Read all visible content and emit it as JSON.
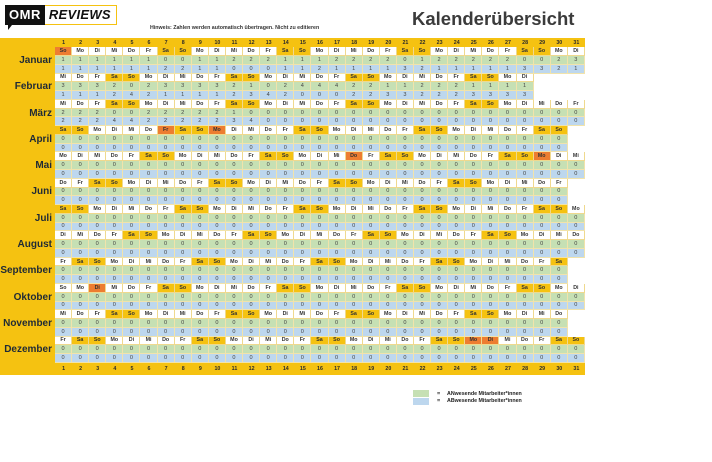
{
  "header": {
    "logo": {
      "omr": "OMR",
      "reviews": "REVIEWS"
    },
    "note": "Hinweis: Zahlen werden automatisch übertragen. Nicht zu editieren",
    "title": "Kalenderübersicht"
  },
  "colors": {
    "panel_yellow": "#f5c211",
    "weekend": "#f5c211",
    "holiday": "#ed7d31",
    "present": "#c6e0b4",
    "absent": "#bdd7ee",
    "weekday": "#ffffff"
  },
  "day_numbers": [
    1,
    2,
    3,
    4,
    5,
    6,
    7,
    8,
    9,
    10,
    11,
    12,
    13,
    14,
    15,
    16,
    17,
    18,
    19,
    20,
    21,
    22,
    23,
    24,
    25,
    26,
    27,
    28,
    29,
    30,
    31
  ],
  "months": [
    {
      "name": "Januar",
      "days": [
        "So",
        "Mo",
        "Di",
        "Mi",
        "Do",
        "Fr",
        "Sa",
        "So",
        "Mo",
        "Di",
        "Mi",
        "Do",
        "Fr",
        "Sa",
        "So",
        "Mo",
        "Di",
        "Mi",
        "Do",
        "Fr",
        "Sa",
        "So",
        "Mo",
        "Di",
        "Mi",
        "Do",
        "Fr",
        "Sa",
        "So",
        "Mo",
        "Di"
      ],
      "holidays": [
        1
      ],
      "unmarked": [],
      "present": [
        1,
        1,
        1,
        1,
        1,
        1,
        0,
        0,
        1,
        1,
        2,
        2,
        2,
        1,
        1,
        1,
        2,
        2,
        2,
        2,
        0,
        1,
        2,
        2,
        2,
        2,
        2,
        0,
        0,
        2,
        3
      ],
      "absent": [
        1,
        1,
        1,
        1,
        1,
        1,
        2,
        2,
        1,
        1,
        0,
        0,
        0,
        1,
        1,
        2,
        1,
        1,
        1,
        1,
        3,
        2,
        1,
        1,
        1,
        1,
        1,
        3,
        3,
        2,
        1
      ]
    },
    {
      "name": "Februar",
      "days": [
        "Mi",
        "Do",
        "Fr",
        "Sa",
        "So",
        "Mo",
        "Di",
        "Mi",
        "Do",
        "Fr",
        "Sa",
        "So",
        "Mo",
        "Di",
        "Mi",
        "Do",
        "Fr",
        "Sa",
        "So",
        "Mo",
        "Di",
        "Mi",
        "Do",
        "Fr",
        "Sa",
        "So",
        "Mo",
        "Di"
      ],
      "holidays": [],
      "unmarked": [],
      "present": [
        3,
        3,
        3,
        2,
        0,
        2,
        3,
        3,
        3,
        3,
        2,
        1,
        0,
        2,
        4,
        4,
        4,
        2,
        2,
        1,
        1,
        2,
        2,
        2,
        1,
        1,
        1,
        1
      ],
      "absent": [
        1,
        1,
        1,
        2,
        4,
        2,
        1,
        1,
        1,
        1,
        2,
        3,
        4,
        2,
        0,
        0,
        0,
        2,
        2,
        3,
        3,
        2,
        2,
        2,
        3,
        3,
        3,
        3
      ]
    },
    {
      "name": "März",
      "days": [
        "Mi",
        "Do",
        "Fr",
        "Sa",
        "So",
        "Mo",
        "Di",
        "Mi",
        "Do",
        "Fr",
        "Sa",
        "So",
        "Mo",
        "Di",
        "Mi",
        "Do",
        "Fr",
        "Sa",
        "So",
        "Mo",
        "Di",
        "Mi",
        "Do",
        "Fr",
        "Sa",
        "So",
        "Mo",
        "Di",
        "Mi",
        "Do",
        "Fr"
      ],
      "holidays": [],
      "unmarked": [],
      "present": [
        2,
        2,
        2,
        0,
        0,
        2,
        2,
        2,
        2,
        2,
        1,
        0,
        0,
        0,
        0,
        0,
        0,
        0,
        0,
        0,
        0,
        0,
        0,
        0,
        0,
        0,
        0,
        0,
        0,
        0,
        0
      ],
      "absent": [
        2,
        2,
        2,
        4,
        4,
        2,
        2,
        2,
        2,
        2,
        3,
        4,
        0,
        0,
        0,
        0,
        0,
        0,
        0,
        0,
        0,
        0,
        0,
        0,
        0,
        0,
        0,
        0,
        0,
        0,
        0
      ]
    },
    {
      "name": "April",
      "days": [
        "Sa",
        "So",
        "Mo",
        "Di",
        "Mi",
        "Do",
        "Fr",
        "Sa",
        "So",
        "Mo",
        "Di",
        "Mi",
        "Do",
        "Fr",
        "Sa",
        "So",
        "Mo",
        "Di",
        "Mi",
        "Do",
        "Fr",
        "Sa",
        "So",
        "Mo",
        "Di",
        "Mi",
        "Do",
        "Fr",
        "Sa",
        "So"
      ],
      "holidays": [
        7,
        10
      ],
      "unmarked": [],
      "present": [
        0,
        0,
        0,
        0,
        0,
        0,
        0,
        0,
        0,
        0,
        0,
        0,
        0,
        0,
        0,
        0,
        0,
        0,
        0,
        0,
        0,
        0,
        0,
        0,
        0,
        0,
        0,
        0,
        0,
        0
      ],
      "absent": [
        0,
        0,
        0,
        0,
        0,
        0,
        0,
        0,
        0,
        0,
        0,
        0,
        0,
        0,
        0,
        0,
        0,
        0,
        0,
        0,
        0,
        0,
        0,
        0,
        0,
        0,
        0,
        0,
        0,
        0
      ]
    },
    {
      "name": "Mai",
      "days": [
        "Mo",
        "Di",
        "Mi",
        "Do",
        "Fr",
        "Sa",
        "So",
        "Mo",
        "Di",
        "Mi",
        "Do",
        "Fr",
        "Sa",
        "So",
        "Mo",
        "Di",
        "Mi",
        "Do",
        "Fr",
        "Sa",
        "So",
        "Mo",
        "Di",
        "Mi",
        "Do",
        "Fr",
        "Sa",
        "So",
        "Mo",
        "Di",
        "Mi"
      ],
      "holidays": [
        18,
        29
      ],
      "unmarked": [],
      "present": [
        0,
        0,
        0,
        0,
        0,
        0,
        0,
        0,
        0,
        0,
        0,
        0,
        0,
        0,
        0,
        0,
        0,
        0,
        0,
        0,
        0,
        0,
        0,
        0,
        0,
        0,
        0,
        0,
        0,
        0,
        0
      ],
      "absent": [
        0,
        0,
        0,
        0,
        0,
        0,
        0,
        0,
        0,
        0,
        0,
        0,
        0,
        0,
        0,
        0,
        0,
        0,
        0,
        0,
        0,
        0,
        0,
        0,
        0,
        0,
        0,
        0,
        0,
        0,
        0
      ]
    },
    {
      "name": "Juni",
      "days": [
        "Do",
        "Fr",
        "Sa",
        "So",
        "Mo",
        "Di",
        "Mi",
        "Do",
        "Fr",
        "Sa",
        "So",
        "Mo",
        "Di",
        "Mi",
        "Do",
        "Fr",
        "Sa",
        "So",
        "Mo",
        "Di",
        "Mi",
        "Do",
        "Fr",
        "Sa",
        "So",
        "Mo",
        "Di",
        "Mi",
        "Do",
        "Fr"
      ],
      "holidays": [],
      "unmarked": [],
      "present": [
        0,
        0,
        0,
        0,
        0,
        0,
        0,
        0,
        0,
        0,
        0,
        0,
        0,
        0,
        0,
        0,
        0,
        0,
        0,
        0,
        0,
        0,
        0,
        0,
        0,
        0,
        0,
        0,
        0,
        0
      ],
      "absent": [
        0,
        0,
        0,
        0,
        0,
        0,
        0,
        0,
        0,
        0,
        0,
        0,
        0,
        0,
        0,
        0,
        0,
        0,
        0,
        0,
        0,
        0,
        0,
        0,
        0,
        0,
        0,
        0,
        0,
        0
      ]
    },
    {
      "name": "Juli",
      "days": [
        "Sa",
        "So",
        "Mo",
        "Di",
        "Mi",
        "Do",
        "Fr",
        "Sa",
        "So",
        "Mo",
        "Di",
        "Mi",
        "Do",
        "Fr",
        "Sa",
        "So",
        "Mo",
        "Di",
        "Mi",
        "Do",
        "Fr",
        "Sa",
        "So",
        "Mo",
        "Di",
        "Mi",
        "Do",
        "Fr",
        "Sa",
        "So",
        "Mo"
      ],
      "holidays": [],
      "unmarked": [],
      "present": [
        0,
        0,
        0,
        0,
        0,
        0,
        0,
        0,
        0,
        0,
        0,
        0,
        0,
        0,
        0,
        0,
        0,
        0,
        0,
        0,
        0,
        0,
        0,
        0,
        0,
        0,
        0,
        0,
        0,
        0,
        0
      ],
      "absent": [
        0,
        0,
        0,
        0,
        0,
        0,
        0,
        0,
        0,
        0,
        0,
        0,
        0,
        0,
        0,
        0,
        0,
        0,
        0,
        0,
        0,
        0,
        0,
        0,
        0,
        0,
        0,
        0,
        0,
        0,
        0
      ]
    },
    {
      "name": "August",
      "days": [
        "Di",
        "Mi",
        "Do",
        "Fr",
        "Sa",
        "So",
        "Mo",
        "Di",
        "Mi",
        "Do",
        "Fr",
        "Sa",
        "So",
        "Mo",
        "Di",
        "Mi",
        "Do",
        "Fr",
        "Sa",
        "So",
        "Mo",
        "Di",
        "Mi",
        "Do",
        "Fr",
        "Sa",
        "So",
        "Mo",
        "Di",
        "Mi",
        "Do"
      ],
      "holidays": [],
      "unmarked": [],
      "present": [
        0,
        0,
        0,
        0,
        0,
        0,
        0,
        0,
        0,
        0,
        0,
        0,
        0,
        0,
        0,
        0,
        0,
        0,
        0,
        0,
        0,
        0,
        0,
        0,
        0,
        0,
        0,
        0,
        0,
        0,
        0
      ],
      "absent": [
        0,
        0,
        0,
        0,
        0,
        0,
        0,
        0,
        0,
        0,
        0,
        0,
        0,
        0,
        0,
        0,
        0,
        0,
        0,
        0,
        0,
        0,
        0,
        0,
        0,
        0,
        0,
        0,
        0,
        0,
        0
      ]
    },
    {
      "name": "September",
      "days": [
        "Fr",
        "Sa",
        "So",
        "Mo",
        "Di",
        "Mi",
        "Do",
        "Fr",
        "Sa",
        "So",
        "Mo",
        "Di",
        "Mi",
        "Do",
        "Fr",
        "Sa",
        "So",
        "Mo",
        "Di",
        "Mi",
        "Do",
        "Fr",
        "Sa",
        "So",
        "Mo",
        "Di",
        "Mi",
        "Do",
        "Fr",
        "Sa"
      ],
      "holidays": [],
      "unmarked": [],
      "present": [
        0,
        0,
        0,
        0,
        0,
        0,
        0,
        0,
        0,
        0,
        0,
        0,
        0,
        0,
        0,
        0,
        0,
        0,
        0,
        0,
        0,
        0,
        0,
        0,
        0,
        0,
        0,
        0,
        0,
        0
      ],
      "absent": [
        0,
        0,
        0,
        0,
        0,
        0,
        0,
        0,
        0,
        0,
        0,
        0,
        0,
        0,
        0,
        0,
        0,
        0,
        0,
        0,
        0,
        0,
        0,
        0,
        0,
        0,
        0,
        0,
        0,
        0
      ]
    },
    {
      "name": "Oktober",
      "days": [
        "So",
        "Mo",
        "Di",
        "Mi",
        "Do",
        "Fr",
        "Sa",
        "So",
        "Mo",
        "Di",
        "Mi",
        "Do",
        "Fr",
        "Sa",
        "So",
        "Mo",
        "Di",
        "Mi",
        "Do",
        "Fr",
        "Sa",
        "So",
        "Mo",
        "Di",
        "Mi",
        "Do",
        "Fr",
        "Sa",
        "So",
        "Mo",
        "Di"
      ],
      "holidays": [
        3
      ],
      "unmarked": [
        1
      ],
      "present": [
        0,
        0,
        0,
        0,
        0,
        0,
        0,
        0,
        0,
        0,
        0,
        0,
        0,
        0,
        0,
        0,
        0,
        0,
        0,
        0,
        0,
        0,
        0,
        0,
        0,
        0,
        0,
        0,
        0,
        0,
        0
      ],
      "absent": [
        0,
        0,
        0,
        0,
        0,
        0,
        0,
        0,
        0,
        0,
        0,
        0,
        0,
        0,
        0,
        0,
        0,
        0,
        0,
        0,
        0,
        0,
        0,
        0,
        0,
        0,
        0,
        0,
        0,
        0,
        0
      ]
    },
    {
      "name": "November",
      "days": [
        "Mi",
        "Do",
        "Fr",
        "Sa",
        "So",
        "Mo",
        "Di",
        "Mi",
        "Do",
        "Fr",
        "Sa",
        "So",
        "Mo",
        "Di",
        "Mi",
        "Do",
        "Fr",
        "Sa",
        "So",
        "Mo",
        "Di",
        "Mi",
        "Do",
        "Fr",
        "Sa",
        "So",
        "Mo",
        "Di",
        "Mi",
        "Do"
      ],
      "holidays": [],
      "unmarked": [],
      "present": [
        0,
        0,
        0,
        0,
        0,
        0,
        0,
        0,
        0,
        0,
        0,
        0,
        0,
        0,
        0,
        0,
        0,
        0,
        0,
        0,
        0,
        0,
        0,
        0,
        0,
        0,
        0,
        0,
        0,
        0
      ],
      "absent": [
        0,
        0,
        0,
        0,
        0,
        0,
        0,
        0,
        0,
        0,
        0,
        0,
        0,
        0,
        0,
        0,
        0,
        0,
        0,
        0,
        0,
        0,
        0,
        0,
        0,
        0,
        0,
        0,
        0,
        0
      ]
    },
    {
      "name": "Dezember",
      "days": [
        "Fr",
        "Sa",
        "So",
        "Mo",
        "Di",
        "Mi",
        "Do",
        "Fr",
        "Sa",
        "So",
        "Mo",
        "Di",
        "Mi",
        "Do",
        "Fr",
        "Sa",
        "So",
        "Mo",
        "Di",
        "Mi",
        "Do",
        "Fr",
        "Sa",
        "So",
        "Mo",
        "Di",
        "Mi",
        "Do",
        "Fr",
        "Sa",
        "So"
      ],
      "holidays": [
        25,
        26
      ],
      "unmarked": [],
      "present": [
        0,
        0,
        0,
        0,
        0,
        0,
        0,
        0,
        0,
        0,
        0,
        0,
        0,
        0,
        0,
        0,
        0,
        0,
        0,
        0,
        0,
        0,
        0,
        0,
        0,
        0,
        0,
        0,
        0,
        0,
        0
      ],
      "absent": [
        0,
        0,
        0,
        0,
        0,
        0,
        0,
        0,
        0,
        0,
        0,
        0,
        0,
        0,
        0,
        0,
        0,
        0,
        0,
        0,
        0,
        0,
        0,
        0,
        0,
        0,
        0,
        0,
        0,
        0,
        0
      ]
    }
  ],
  "legend": [
    {
      "key": "present",
      "color": "#c6e0b4",
      "separator": "=",
      "label": "ANwesende Mitarbeiter*innen"
    },
    {
      "key": "absent",
      "color": "#bdd7ee",
      "separator": "=",
      "label": "ABwesende Mitarbeiter*innen"
    }
  ]
}
